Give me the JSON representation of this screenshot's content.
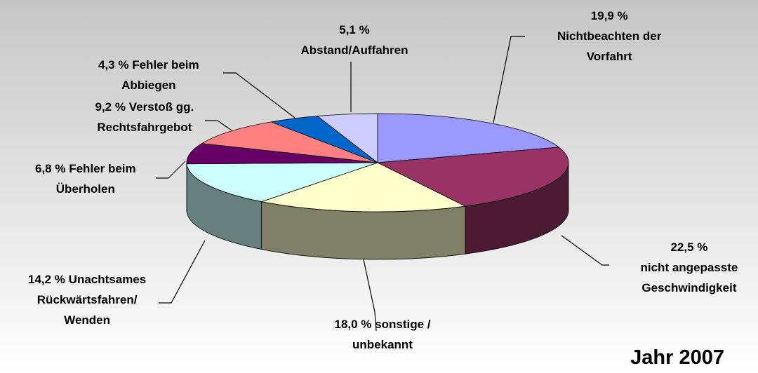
{
  "chart_data": {
    "type": "pie3d",
    "title": "Jahr 2007",
    "categories": [
      "Nichtbeachten der\nVorfahrt",
      "nicht angepasste\nGeschwindigkeit",
      "sonstige /\nunbekannt",
      "Unachtsames\nRückwärtsfahren/\nWenden",
      "Fehler beim\nÜberholen",
      "Verstoß gg.\nRechtsfahrgebot",
      "Fehler beim\nAbbiegen",
      "Abstand/Auffahren"
    ],
    "values": [
      19.9,
      22.5,
      18.0,
      14.2,
      6.8,
      9.2,
      4.3,
      5.1
    ],
    "value_labels": [
      "19,9 %",
      "22,5 %",
      "18,0 %",
      "14,2 %",
      "6,8 %",
      "9,2 %",
      "4,3 %",
      "5,1 %"
    ],
    "colors": [
      "#9999ff",
      "#993366",
      "#ffffcc",
      "#ccffff",
      "#660066",
      "#ff8080",
      "#0066cc",
      "#ccccff"
    ]
  }
}
